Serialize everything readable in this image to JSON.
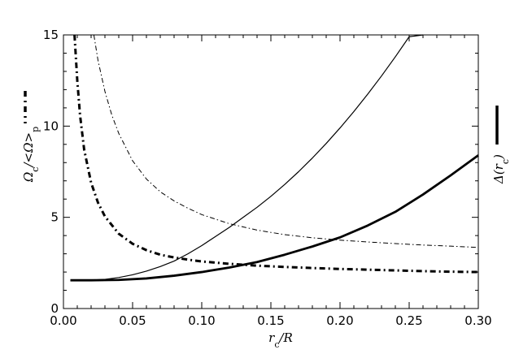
{
  "chart_data": {
    "type": "line",
    "xlabel": "r_c/R",
    "ylabel_left": "Ω_c/<Ω>_p",
    "ylabel_right": "Δ(r_c)",
    "xlim": [
      0.0,
      0.3
    ],
    "ylim": [
      0,
      15
    ],
    "x_ticks": [
      "0.00",
      "0.05",
      "0.10",
      "0.15",
      "0.20",
      "0.25",
      "0.30"
    ],
    "y_ticks": [
      "0",
      "5",
      "10",
      "15"
    ],
    "colors": {
      "line": "#000000",
      "background": "#ffffff"
    },
    "series": [
      {
        "style": "solid-thin",
        "x": [
          0.005,
          0.02,
          0.03,
          0.04,
          0.05,
          0.06,
          0.07,
          0.08,
          0.09,
          0.1,
          0.11,
          0.12,
          0.13,
          0.14,
          0.15,
          0.16,
          0.17,
          0.18,
          0.19,
          0.2,
          0.21,
          0.22,
          0.23,
          0.24,
          0.25,
          0.26
        ],
        "y": [
          1.55,
          1.56,
          1.6,
          1.7,
          1.85,
          2.05,
          2.3,
          2.6,
          3.0,
          3.45,
          3.95,
          4.45,
          5.0,
          5.55,
          6.15,
          6.8,
          7.5,
          8.25,
          9.05,
          9.9,
          10.8,
          11.75,
          12.75,
          13.8,
          14.9,
          15.0
        ]
      },
      {
        "style": "solid-thick",
        "x": [
          0.005,
          0.02,
          0.04,
          0.06,
          0.08,
          0.1,
          0.12,
          0.14,
          0.16,
          0.18,
          0.2,
          0.22,
          0.24,
          0.26,
          0.28,
          0.3
        ],
        "y": [
          1.55,
          1.55,
          1.57,
          1.65,
          1.8,
          2.0,
          2.25,
          2.55,
          2.95,
          3.4,
          3.9,
          4.55,
          5.3,
          6.25,
          7.3,
          8.4
        ]
      },
      {
        "style": "dashdot-thin",
        "x": [
          0.022,
          0.025,
          0.03,
          0.035,
          0.04,
          0.05,
          0.06,
          0.07,
          0.08,
          0.09,
          0.1,
          0.12,
          0.14,
          0.16,
          0.18,
          0.2,
          0.22,
          0.24,
          0.26,
          0.28,
          0.3
        ],
        "y": [
          15.0,
          13.6,
          11.9,
          10.6,
          9.6,
          8.1,
          7.1,
          6.4,
          5.9,
          5.5,
          5.15,
          4.65,
          4.3,
          4.05,
          3.88,
          3.75,
          3.65,
          3.56,
          3.48,
          3.42,
          3.35
        ]
      },
      {
        "style": "dashdot-thick",
        "x": [
          0.008,
          0.01,
          0.012,
          0.015,
          0.02,
          0.025,
          0.03,
          0.04,
          0.05,
          0.06,
          0.07,
          0.08,
          0.09,
          0.1,
          0.12,
          0.14,
          0.16,
          0.18,
          0.2,
          0.22,
          0.24,
          0.26,
          0.28,
          0.3
        ],
        "y": [
          15.0,
          12.5,
          10.6,
          8.7,
          6.9,
          5.8,
          5.05,
          4.1,
          3.55,
          3.2,
          2.95,
          2.8,
          2.68,
          2.58,
          2.45,
          2.35,
          2.28,
          2.22,
          2.17,
          2.13,
          2.09,
          2.05,
          2.02,
          2.0
        ]
      }
    ]
  }
}
